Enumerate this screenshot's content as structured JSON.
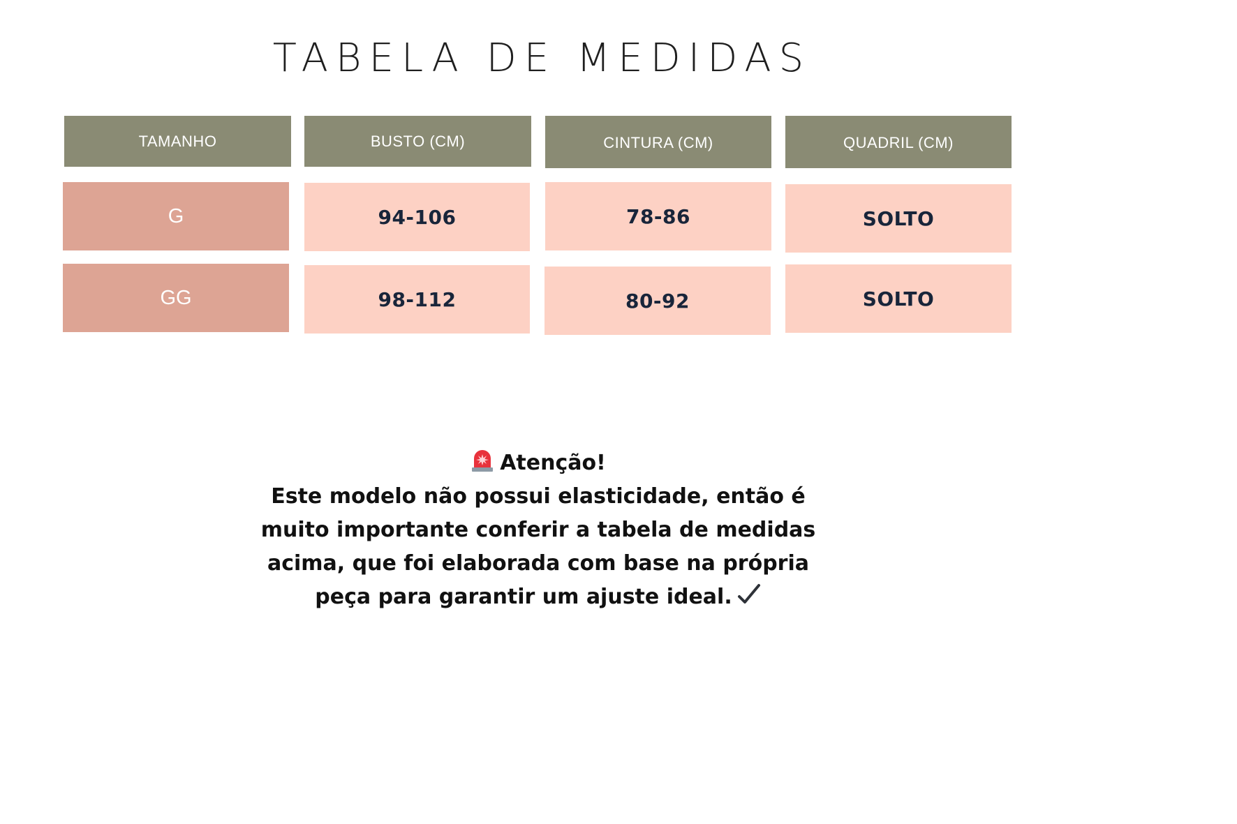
{
  "title": "TABELA DE MEDIDAS",
  "table": {
    "headers": [
      "TAMANHO",
      "BUSTO (CM)",
      "CINTURA (CM)",
      "QUADRIL (CM)"
    ],
    "rows": [
      [
        "G",
        "94-106",
        "78-86",
        "SOLTO"
      ],
      [
        "GG",
        "98-112",
        "80-92",
        "SOLTO"
      ]
    ]
  },
  "notice": {
    "heading": "Atenção!",
    "lines": [
      "Este modelo não possui elasticidade, então é",
      "muito importante conferir a tabela de medidas",
      "acima, que foi elaborada com base na própria",
      "peça para garantir um ajuste ideal."
    ],
    "heading_icon": "siren-icon",
    "end_icon": "check-mark-icon"
  },
  "colors": {
    "header_bg": "#8a8b74",
    "size_bg": "#dda494",
    "value_bg": "#fdd1c4",
    "value_text": "#18253a"
  }
}
